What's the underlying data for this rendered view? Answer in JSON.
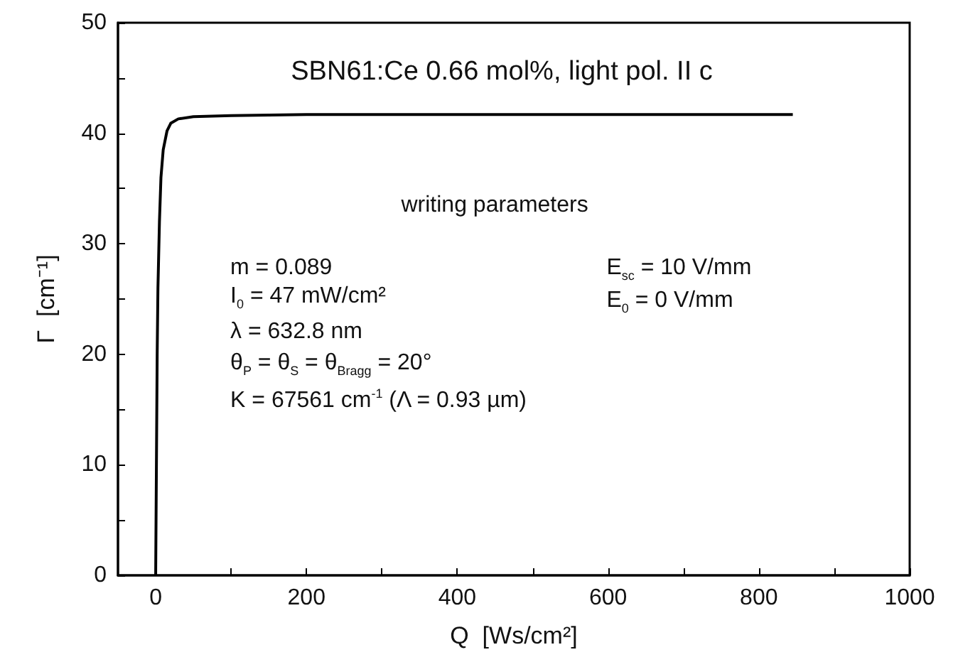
{
  "chart_data": {
    "type": "line",
    "title": "SBN61:Ce 0.66 mol%, light pol. II c",
    "xlabel": "Q  [Ws/cm²]",
    "ylabel": "Γ  [cm⁻¹]",
    "x": [
      0,
      1,
      2,
      3,
      5,
      7,
      10,
      15,
      20,
      30,
      50,
      100,
      200,
      400,
      600,
      845
    ],
    "series": [
      {
        "color": "#000000",
        "values": [
          0,
          10,
          20,
          26,
          32,
          36,
          38.5,
          40.2,
          40.9,
          41.3,
          41.5,
          41.6,
          41.7,
          41.7,
          41.7,
          41.7
        ]
      }
    ],
    "xlim": [
      -50,
      1000
    ],
    "xticks": [
      0,
      {
        "value": 100,
        "label": null
      },
      200,
      {
        "value": 300,
        "label": null
      },
      400,
      {
        "value": 500,
        "label": null
      },
      600,
      {
        "value": 700,
        "label": null
      },
      800,
      {
        "value": 900,
        "label": null
      },
      {
        "value": 1000,
        "label": "1000"
      }
    ],
    "ylim": [
      0,
      50
    ],
    "yticks": [
      0,
      {
        "value": 5,
        "label": null
      },
      10,
      {
        "value": 15,
        "label": null
      },
      20,
      {
        "value": 25,
        "label": null
      },
      30,
      {
        "value": 35,
        "label": null
      },
      40,
      {
        "value": 45,
        "label": null
      },
      50
    ],
    "grid": false,
    "line_style": "solid",
    "annotations": [
      "writing parameters",
      "m = 0.089",
      "I$_{0}$ = 47 mW/cm²",
      "λ = 632.8 nm",
      "θ$_{P}$ = θ$_{S}$ = θ$_{Bragg}$ = 20°",
      "K = 67561 cm$^{-1}$ (Λ = 0.93 µm)",
      "E$_{sc}$ = 10 V/mm",
      "E$_{0}$ = 0 V/mm"
    ]
  }
}
